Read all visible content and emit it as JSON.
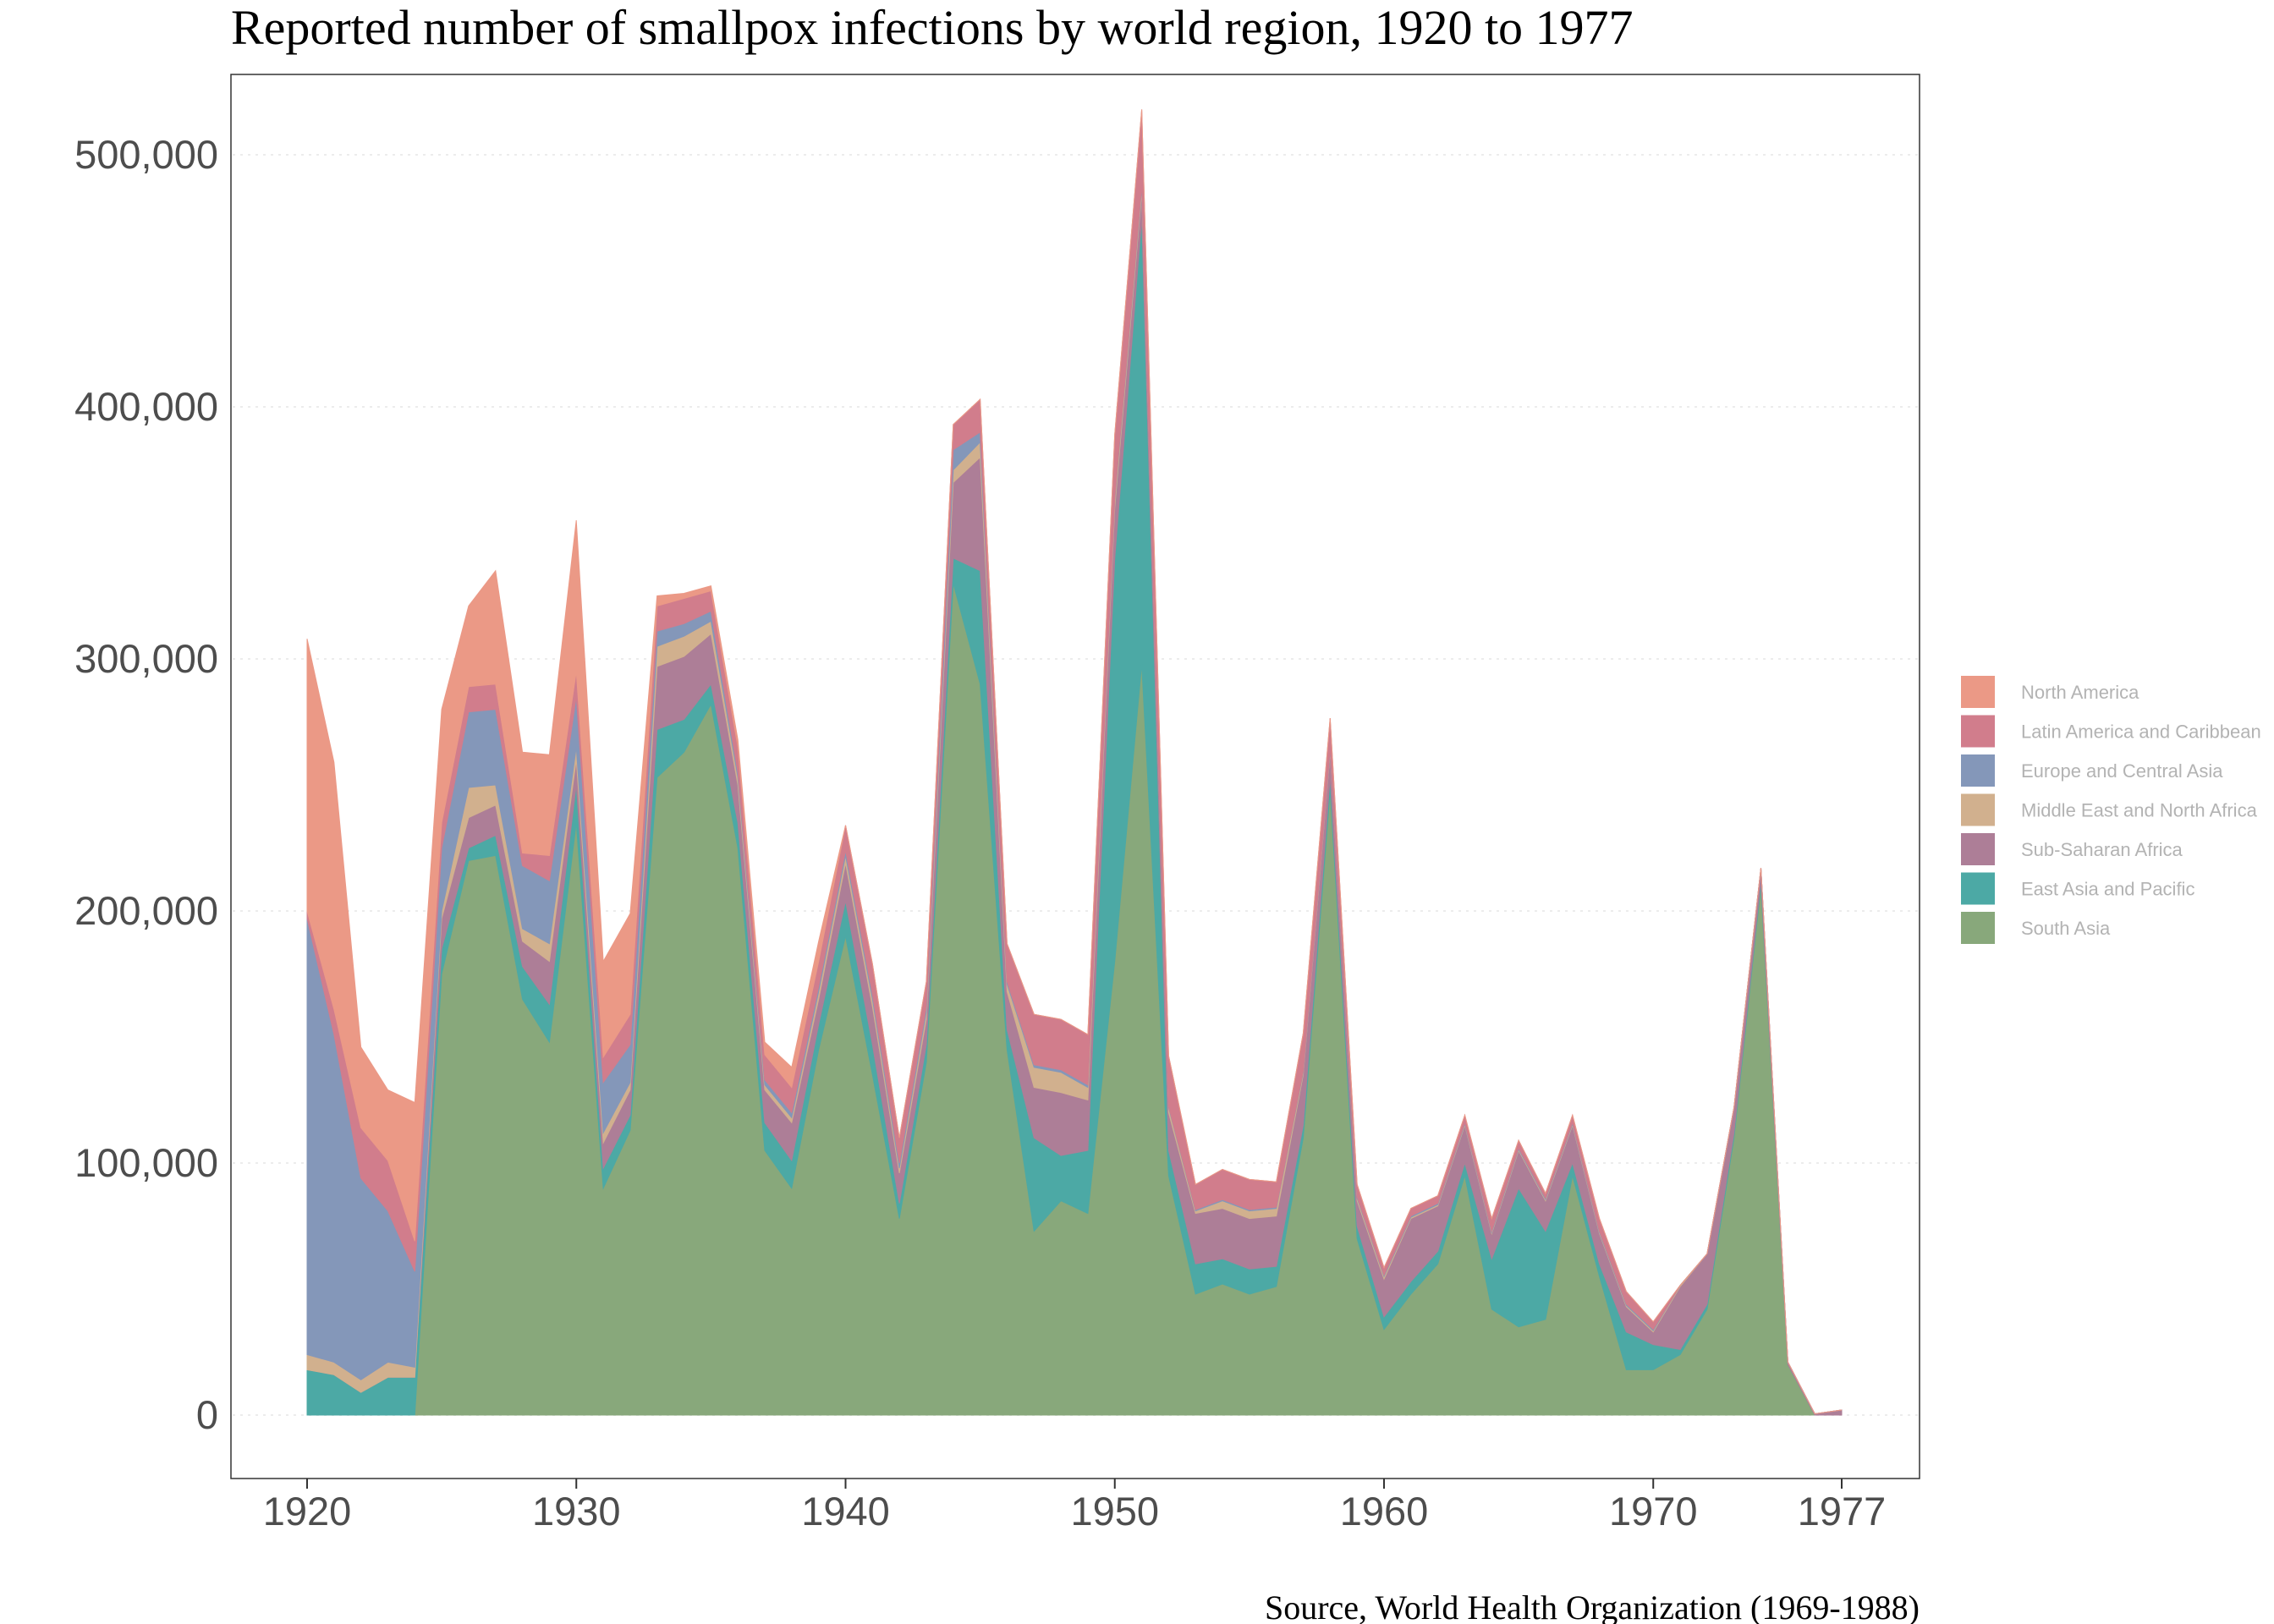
{
  "chart_data": {
    "type": "area",
    "stacked": true,
    "title": "Reported number of smallpox infections by world region, 1920 to 1977",
    "caption": "Source, World Health Organization (1969-1988)",
    "xlabel": "",
    "ylabel": "",
    "xlim": [
      1920,
      1977
    ],
    "ylim": [
      0,
      550000
    ],
    "x_ticks": [
      1920,
      1930,
      1940,
      1950,
      1960,
      1970,
      1977
    ],
    "x_tick_labels": [
      "1920",
      "1930",
      "1940",
      "1950",
      "1960",
      "1970",
      "1977"
    ],
    "y_ticks": [
      0,
      100000,
      200000,
      300000,
      400000,
      500000
    ],
    "y_tick_labels": [
      "0",
      "100,000",
      "200,000",
      "300,000",
      "400,000",
      "500,000"
    ],
    "grid": "horizontal-dotted",
    "legend_position": "right",
    "x": [
      1920,
      1921,
      1922,
      1923,
      1924,
      1925,
      1926,
      1927,
      1928,
      1929,
      1930,
      1931,
      1932,
      1933,
      1934,
      1935,
      1936,
      1937,
      1938,
      1939,
      1940,
      1941,
      1942,
      1943,
      1944,
      1945,
      1946,
      1947,
      1948,
      1949,
      1950,
      1951,
      1952,
      1953,
      1954,
      1955,
      1956,
      1957,
      1958,
      1959,
      1960,
      1961,
      1962,
      1963,
      1964,
      1965,
      1966,
      1967,
      1968,
      1969,
      1970,
      1971,
      1972,
      1973,
      1974,
      1975,
      1976,
      1977
    ],
    "series": [
      {
        "name": "South Asia",
        "color": "#88a87b",
        "values": [
          0,
          0,
          0,
          0,
          0,
          175000,
          220000,
          222000,
          165000,
          148000,
          235000,
          90000,
          113000,
          253000,
          263000,
          282000,
          225000,
          105000,
          90000,
          145000,
          190000,
          135000,
          78000,
          140000,
          330000,
          290000,
          145000,
          73000,
          85000,
          80000,
          180000,
          298000,
          95000,
          48000,
          52000,
          48000,
          51000,
          110000,
          248000,
          70000,
          34000,
          48000,
          60000,
          95000,
          42000,
          35000,
          38000,
          95000,
          55000,
          18000,
          18000,
          24000,
          42000,
          110000,
          210000,
          20000,
          0,
          0
        ]
      },
      {
        "name": "East Asia and Pacific",
        "color": "#4ca9a5",
        "values": [
          18000,
          16000,
          9000,
          15000,
          15000,
          10000,
          5000,
          8000,
          13000,
          15000,
          15000,
          8000,
          6000,
          19000,
          13000,
          8000,
          10000,
          11000,
          11000,
          10000,
          14000,
          12000,
          6000,
          7000,
          10000,
          45000,
          8000,
          37000,
          18000,
          25000,
          160000,
          177000,
          10000,
          12000,
          10000,
          10000,
          8000,
          5000,
          5000,
          5000,
          5000,
          5000,
          5000,
          5000,
          20000,
          55000,
          35000,
          5000,
          5000,
          15000,
          10000,
          2000,
          2000,
          2000,
          2000,
          0,
          0,
          0
        ]
      },
      {
        "name": "Sub-Saharan Africa",
        "color": "#ad7e97",
        "values": [
          0,
          0,
          0,
          0,
          0,
          12000,
          12000,
          12000,
          10000,
          17000,
          10000,
          10000,
          10000,
          25000,
          25000,
          20000,
          15000,
          13000,
          15000,
          10000,
          15000,
          15000,
          12000,
          10000,
          30000,
          45000,
          15000,
          20000,
          25000,
          20000,
          20000,
          10000,
          15000,
          20000,
          20000,
          20000,
          20000,
          20000,
          10000,
          10000,
          15000,
          25000,
          18000,
          15000,
          10000,
          15000,
          12000,
          15000,
          12000,
          10000,
          5000,
          25000,
          20000,
          10000,
          5000,
          1000,
          500,
          2000
        ]
      },
      {
        "name": "Middle East and North Africa",
        "color": "#d1b08e",
        "values": [
          6000,
          5000,
          5000,
          6000,
          4000,
          3000,
          12000,
          8000,
          5000,
          7000,
          5000,
          4000,
          3000,
          8000,
          8000,
          5000,
          3000,
          2000,
          2000,
          3000,
          3000,
          3000,
          2000,
          3000,
          5000,
          6000,
          3000,
          8000,
          8000,
          5000,
          3000,
          2000,
          2000,
          1000,
          3000,
          3000,
          3000,
          1000,
          1000,
          1000,
          1000,
          500,
          500,
          500,
          500,
          500,
          500,
          500,
          500,
          500,
          500,
          500,
          0,
          0,
          0,
          0,
          0,
          0
        ]
      },
      {
        "name": "Europe and Central Asia",
        "color": "#8497b9",
        "values": [
          173000,
          130000,
          80000,
          60000,
          38000,
          25000,
          30000,
          30000,
          25000,
          25000,
          20000,
          20000,
          15000,
          6000,
          5000,
          4000,
          2000,
          2000,
          2000,
          2000,
          2000,
          2000,
          2000,
          2000,
          8000,
          4000,
          1000,
          1000,
          1000,
          1000,
          1000,
          1000,
          500,
          500,
          500,
          500,
          500,
          500,
          500,
          500,
          500,
          500,
          500,
          500,
          500,
          500,
          500,
          500,
          500,
          500,
          500,
          0,
          0,
          0,
          0,
          0,
          0,
          0
        ]
      },
      {
        "name": "Latin America and Caribbean",
        "color": "#d17d8c",
        "values": [
          3000,
          10000,
          20000,
          20000,
          12000,
          10000,
          10000,
          10000,
          5000,
          10000,
          10000,
          10000,
          12000,
          10000,
          10000,
          8000,
          10000,
          10000,
          10000,
          10000,
          10000,
          12000,
          10000,
          10000,
          10000,
          13000,
          15000,
          20000,
          20000,
          20000,
          25000,
          30000,
          20000,
          10000,
          12000,
          12000,
          10000,
          15000,
          12000,
          5000,
          3000,
          3000,
          3000,
          3000,
          5000,
          3000,
          2000,
          3000,
          5000,
          5000,
          3000,
          0,
          0,
          0,
          0,
          0,
          0,
          0
        ]
      },
      {
        "name": "North America",
        "color": "#eb9986",
        "values": [
          108000,
          98000,
          32000,
          28000,
          55000,
          45000,
          32000,
          45000,
          40000,
          40000,
          60000,
          38000,
          40000,
          4000,
          2000,
          2000,
          3000,
          5000,
          8000,
          8000,
          0,
          0,
          0,
          0,
          0,
          0,
          0,
          0,
          0,
          0,
          0,
          0,
          0,
          0,
          0,
          0,
          0,
          0,
          0,
          0,
          0,
          0,
          0,
          0,
          0,
          0,
          0,
          0,
          0,
          0,
          0,
          0,
          0,
          0,
          0,
          0,
          0,
          0
        ]
      }
    ]
  }
}
